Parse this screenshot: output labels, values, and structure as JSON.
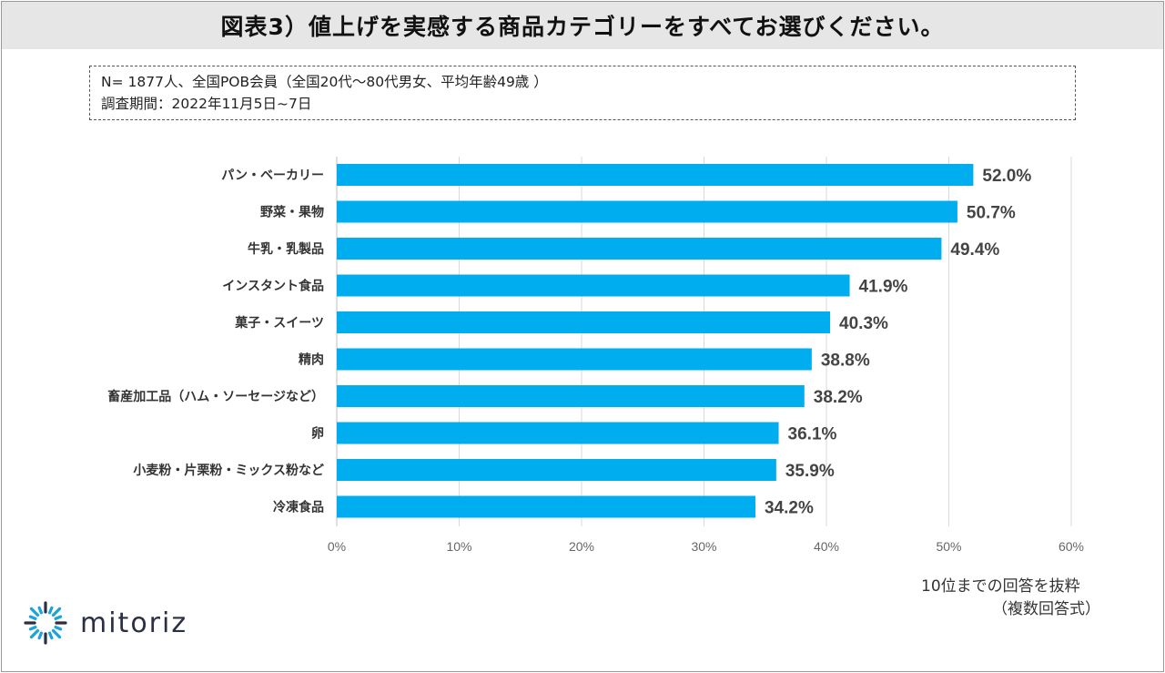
{
  "title": "図表3）値上げを実感する商品カテゴリーをすべてお選びください。",
  "note": {
    "line1": "N= 1877人、全国POB会員（全国20代～80代男女、平均年齢49歳 ）",
    "line2": "調査期間：2022年11月5日~7日"
  },
  "footnote": {
    "line1": "10位までの回答を抜粋",
    "line2": "（複数回答式）"
  },
  "logo": {
    "text": "mitoriz",
    "icon": "sun-burst-logo-icon",
    "color": "#1aa3dc"
  },
  "chart_data": {
    "type": "bar",
    "orientation": "horizontal",
    "categories": [
      "パン・ベーカリー",
      "野菜・果物",
      "牛乳・乳製品",
      "インスタント食品",
      "菓子・スイーツ",
      "精肉",
      "畜産加工品（ハム・ソーセージなど）",
      "卵",
      "小麦粉・片栗粉・ミックス粉など",
      "冷凍食品"
    ],
    "values": [
      52.0,
      50.7,
      49.4,
      41.9,
      40.3,
      38.8,
      38.2,
      36.1,
      35.9,
      34.2
    ],
    "value_labels": [
      "52.0%",
      "50.7%",
      "49.4%",
      "41.9%",
      "40.3%",
      "38.8%",
      "38.2%",
      "36.1%",
      "35.9%",
      "34.2%"
    ],
    "xlim": [
      0,
      60
    ],
    "xticks": [
      0,
      10,
      20,
      30,
      40,
      50,
      60
    ],
    "xtick_labels": [
      "0%",
      "10%",
      "20%",
      "30%",
      "40%",
      "50%",
      "60%"
    ],
    "grid": true,
    "bar_color": "#00aeef",
    "title": "",
    "xlabel": "",
    "ylabel": ""
  }
}
